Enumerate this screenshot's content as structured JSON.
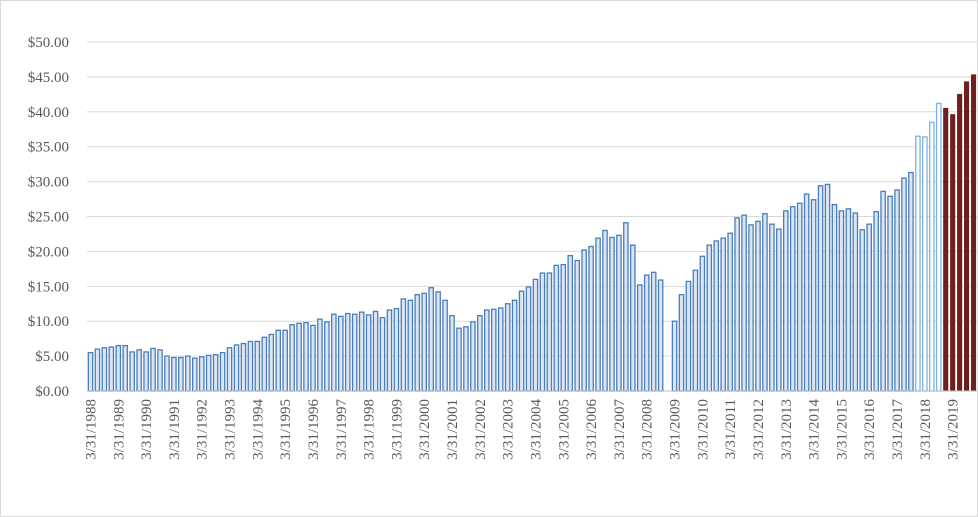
{
  "chart_data": {
    "type": "bar",
    "title": "",
    "xlabel": "",
    "ylabel": "",
    "ylim": [
      0,
      50
    ],
    "y_ticks": [
      "$0.00",
      "$5.00",
      "$10.00",
      "$15.00",
      "$20.00",
      "$25.00",
      "$30.00",
      "$35.00",
      "$40.00",
      "$45.00",
      "$50.00"
    ],
    "x_tick_labels": [
      "3/31/1988",
      "3/31/1989",
      "3/31/1990",
      "3/31/1991",
      "3/31/1992",
      "3/31/1993",
      "3/31/1994",
      "3/31/1995",
      "3/31/1996",
      "3/31/1997",
      "3/31/1998",
      "3/31/1999",
      "3/31/2000",
      "3/31/2001",
      "3/31/2002",
      "3/31/2003",
      "3/31/2004",
      "3/31/2005",
      "3/31/2006",
      "3/31/2007",
      "3/31/2008",
      "3/31/2009",
      "3/31/2010",
      "3/31/2011",
      "3/31/2012",
      "3/31/2013",
      "3/31/2014",
      "3/31/2015",
      "3/31/2016",
      "3/31/2017",
      "3/31/2018",
      "3/31/2019"
    ],
    "grid": true,
    "legend": "none",
    "colors": {
      "historical": "#4a7ebb",
      "historical_fill": "#dbe5f3",
      "estimate": "#7fb2e5",
      "forecast": "#6e2020",
      "grid": "#d9d9d9",
      "axis": "#bfbfbf"
    },
    "series": [
      {
        "style": "historical",
        "values": [
          5.5,
          6.0,
          6.2,
          6.3,
          6.5,
          6.5,
          5.6,
          5.9,
          5.6,
          6.1,
          5.9,
          5.0,
          4.8,
          4.8,
          5.0,
          4.7,
          4.9,
          5.1,
          5.2,
          5.5,
          6.2,
          6.6,
          6.8,
          7.1,
          7.1,
          7.7,
          8.1,
          8.7,
          8.7,
          9.5,
          9.7,
          9.8,
          9.4,
          10.3,
          9.9,
          11.0,
          10.7,
          11.1,
          11.0,
          11.3,
          10.9,
          11.4,
          10.5,
          11.6,
          11.8,
          13.2,
          13.0,
          13.8,
          14.0,
          14.8,
          14.2,
          13.0,
          10.8,
          9.0,
          9.2,
          9.9,
          10.8,
          11.6,
          11.7,
          11.9,
          12.5,
          13.0,
          14.3,
          14.9,
          16.0,
          16.9,
          16.9,
          18.0,
          18.1,
          19.4,
          18.7,
          20.2,
          20.7,
          21.9,
          23.0,
          22.0,
          22.3,
          24.1,
          20.9,
          15.2,
          16.6,
          17.0,
          15.9,
          0.0,
          10.0,
          13.8,
          15.7,
          17.3,
          19.3,
          20.9,
          21.5,
          21.9,
          22.6,
          24.8,
          25.2,
          23.8,
          24.3,
          25.4,
          23.9,
          23.2,
          25.8,
          26.4,
          26.9,
          28.2,
          27.4,
          29.4,
          29.6,
          26.7,
          25.8,
          26.1,
          25.5,
          23.1,
          23.9,
          25.7,
          28.6,
          27.9,
          28.8,
          30.5,
          31.3
        ]
      },
      {
        "style": "estimate",
        "values": [
          36.5,
          36.4,
          38.5,
          41.2
        ]
      },
      {
        "style": "forecast",
        "values": [
          40.5,
          39.6,
          42.5,
          44.3,
          45.3
        ]
      }
    ]
  }
}
